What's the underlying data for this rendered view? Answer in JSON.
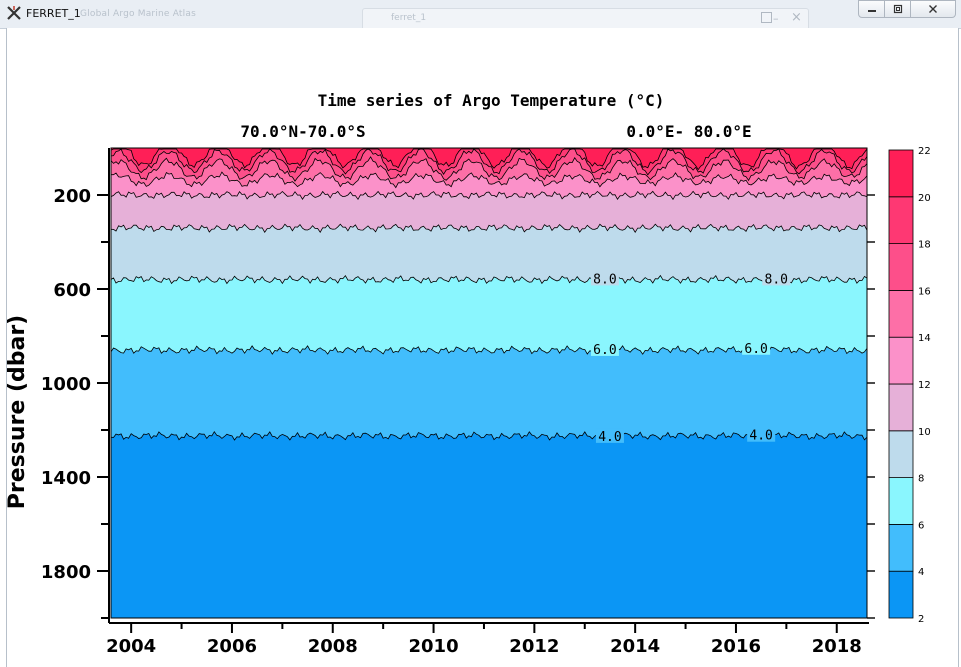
{
  "window": {
    "title": "FERRET_1",
    "background_title": "Global Argo Marine Atlas",
    "background_window_title": "ferret_1",
    "controls": {
      "minimize": "minimize-icon",
      "maximize": "maximize-icon",
      "close": "close-icon"
    }
  },
  "chart_data": {
    "type": "contour-filled",
    "title": "Time series of Argo Temperature (°C)",
    "subtitle_left": "70.0°N-70.0°S",
    "subtitle_right": "0.0°E- 80.0°E",
    "xlabel": "",
    "ylabel": "Pressure (dbar)",
    "xlim": [
      2003.6,
      2018.6
    ],
    "ylim": [
      2000,
      0
    ],
    "x_ticks": [
      2004,
      2006,
      2008,
      2010,
      2012,
      2014,
      2016,
      2018
    ],
    "x_tick_labels": [
      "2004",
      "2006",
      "2008",
      "2010",
      "2012",
      "2014",
      "2016",
      "2018"
    ],
    "y_ticks": [
      200,
      600,
      1000,
      1400,
      1800
    ],
    "y_tick_labels": [
      "200",
      "600",
      "1000",
      "1400",
      "1800"
    ],
    "isotherm_depths": [
      {
        "level": 4,
        "pressure": 1225
      },
      {
        "level": 6,
        "pressure": 860
      },
      {
        "level": 8,
        "pressure": 560
      },
      {
        "level": 10,
        "pressure": 340
      },
      {
        "level": 12,
        "pressure": 200
      },
      {
        "level": 14,
        "pressure": 135
      },
      {
        "level": 16,
        "pressure": 90
      },
      {
        "level": 18,
        "pressure": 55
      },
      {
        "level": 20,
        "pressure": 25
      }
    ],
    "seasonal_amplitude": [
      0,
      0,
      0,
      0,
      0,
      4,
      8,
      10,
      12
    ],
    "contour_labels": [
      {
        "text": "8.0",
        "x": 2013.4,
        "pressure": 555
      },
      {
        "text": "8.0",
        "x": 2016.8,
        "pressure": 555
      },
      {
        "text": "6.0",
        "x": 2013.4,
        "pressure": 855
      },
      {
        "text": "6.0",
        "x": 2016.4,
        "pressure": 850
      },
      {
        "text": "4.0",
        "x": 2013.5,
        "pressure": 1225
      },
      {
        "text": "4.0",
        "x": 2016.5,
        "pressure": 1220
      }
    ],
    "colorbar": {
      "levels": [
        2,
        4,
        6,
        8,
        10,
        12,
        14,
        16,
        18,
        20,
        22
      ],
      "labels": [
        "2",
        "4",
        "6",
        "8",
        "10",
        "12",
        "14",
        "16",
        "18",
        "20",
        "22"
      ],
      "colors": [
        "#0b96f5",
        "#42bdfc",
        "#8af6fe",
        "#bedbec",
        "#e6b0d8",
        "#fb91c9",
        "#fd6fa7",
        "#fd4f8a",
        "#fe3873",
        "#ff1f57"
      ]
    }
  }
}
